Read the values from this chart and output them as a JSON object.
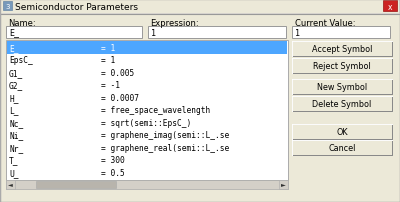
{
  "title": "Semiconductor Parameters",
  "bg_color": "#e8e8e8",
  "name_label": "Name:",
  "expression_label": "Expression:",
  "current_value_label": "Current Value:",
  "name_field": "E_",
  "expression_field": "1",
  "current_value_field": "1",
  "table_rows": [
    [
      "E_",
      "= 1"
    ],
    [
      "EpsC_",
      "= 1"
    ],
    [
      "G1_",
      "= 0.005"
    ],
    [
      "G2_",
      "= -1"
    ],
    [
      "H_",
      "= 0.0007"
    ],
    [
      "L_",
      "= free_space_wavelength"
    ],
    [
      "Nc_",
      "= sqrt(semi::EpsC_)"
    ],
    [
      "Ni_",
      "= graphene_imag(semi::L_.se"
    ],
    [
      "Nr_",
      "= graphene_real(semi::L_.se"
    ],
    [
      "T_",
      "= 300"
    ],
    [
      "U_",
      "= 0.5"
    ]
  ],
  "selected_row": 0,
  "selected_color": "#4da6ff",
  "buttons": [
    "Accept Symbol",
    "Reject Symbol",
    "New Symbol",
    "Delete Symbol",
    "OK",
    "Cancel"
  ],
  "font_size": 6.0,
  "title_font_size": 6.5,
  "close_button_color": "#cc2222",
  "title_bar_color": "#d6d3ce",
  "dialog_bg": "#ece9d8",
  "field_bg": "#ffffff",
  "table_bg": "#ffffff",
  "btn_face": "#ece9d8",
  "btn_border": "#888888",
  "scroll_bg": "#d4d0c8",
  "scroll_thumb": "#b8b4ac"
}
